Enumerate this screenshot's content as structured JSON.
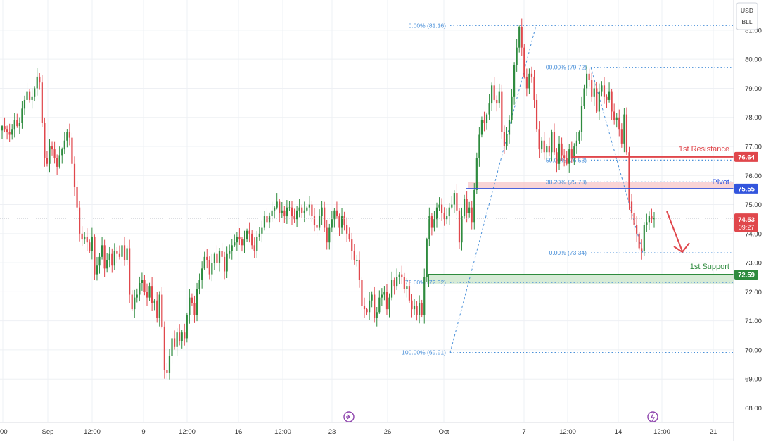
{
  "currency": {
    "line1": "USD",
    "line2": "BLL"
  },
  "colors": {
    "up": "#2e8b3e",
    "down": "#e0474c",
    "fib": "#4a90d9",
    "resistance": "#e0474c",
    "pivot": "#3355dd",
    "support": "#2e8b3e",
    "grid": "#eef0f4",
    "axis_text": "#333333"
  },
  "chart_data": {
    "type": "candlestick",
    "title": "",
    "ylim": [
      67.6,
      81.7
    ],
    "y_ticks": [
      "68.00",
      "69.00",
      "70.00",
      "71.00",
      "72.00",
      "73.00",
      "74.00",
      "75.00",
      "76.00",
      "77.00",
      "78.00",
      "79.00",
      "80.00",
      "81.00"
    ],
    "x_ticks": [
      ":00",
      "Sep",
      "12:00",
      "9",
      "12:00",
      "16",
      "12:00",
      "23",
      "26",
      "Oct",
      "7",
      "12:00",
      "14",
      "12:00",
      "21"
    ],
    "price_labels": {
      "resistance": "76.64",
      "pivot": "75.55",
      "current_price": "74.53",
      "countdown": "09:27",
      "support": "72.59"
    },
    "levels": {
      "resistance": {
        "label": "1st Resistance",
        "value": 76.64
      },
      "pivot": {
        "label": "Pivot",
        "value": 75.55,
        "zone": [
          75.55,
          75.78
        ]
      },
      "support": {
        "label": "1st Support",
        "value": 72.59,
        "zone": [
          72.28,
          72.59
        ]
      }
    },
    "fib_retracements": [
      {
        "label": "0.00% (81.16)",
        "value": 81.16
      },
      {
        "label": "78.60% (72.32)",
        "value": 72.32
      },
      {
        "label": "100.00% (69.91)",
        "value": 69.91
      },
      {
        "label": "00.00% (79.72)",
        "value": 79.72
      },
      {
        "label": "50.00% (76.53)",
        "value": 76.53
      },
      {
        "label": "38.20% (75.78)",
        "value": 75.78
      },
      {
        "label": "0.00% (73.34)",
        "value": 73.34
      }
    ],
    "closes": [
      77.7,
      77.6,
      77.5,
      77.4,
      77.6,
      77.9,
      77.7,
      77.8,
      78.3,
      78.6,
      78.9,
      78.6,
      78.7,
      79.0,
      79.4,
      79.2,
      77.8,
      76.6,
      76.4,
      77.0,
      76.9,
      76.6,
      76.3,
      76.7,
      76.9,
      77.2,
      77.5,
      77.3,
      76.4,
      75.6,
      74.9,
      74.0,
      73.8,
      73.9,
      73.7,
      73.4,
      73.9,
      72.6,
      72.9,
      73.2,
      73.6,
      72.8,
      73.1,
      73.3,
      72.9,
      73.4,
      73.3,
      73.2,
      73.6,
      73.1,
      73.5,
      71.9,
      71.4,
      71.8,
      71.9,
      72.3,
      72.4,
      72.0,
      71.8,
      72.2,
      71.6,
      71.7,
      71.1,
      71.9,
      70.8,
      69.3,
      69.2,
      69.8,
      70.4,
      70.1,
      70.6,
      70.3,
      70.6,
      70.4,
      71.2,
      71.8,
      71.6,
      71.2,
      72.1,
      72.4,
      72.8,
      73.2,
      73.1,
      72.6,
      73.0,
      73.3,
      73.0,
      73.4,
      73.2,
      72.7,
      73.3,
      73.4,
      73.6,
      73.7,
      73.9,
      73.8,
      73.6,
      73.8,
      74.1,
      74.0,
      73.6,
      73.4,
      73.9,
      74.0,
      74.2,
      74.6,
      74.4,
      74.6,
      74.8,
      74.9,
      75.1,
      74.7,
      74.8,
      74.6,
      74.9,
      74.9,
      74.6,
      74.5,
      74.8,
      74.9,
      74.7,
      74.8,
      74.9,
      75.0,
      74.6,
      74.3,
      74.2,
      74.6,
      74.9,
      74.2,
      73.7,
      74.2,
      74.5,
      74.8,
      74.6,
      74.2,
      74.6,
      74.3,
      74.0,
      73.8,
      73.4,
      73.1,
      73.1,
      72.4,
      71.5,
      71.4,
      71.3,
      71.7,
      71.9,
      71.1,
      71.3,
      71.8,
      71.9,
      72.0,
      71.4,
      71.8,
      72.4,
      72.2,
      72.5,
      72.6,
      72.5,
      72.1,
      72.2,
      71.7,
      71.4,
      71.5,
      71.2,
      71.6,
      71.2,
      72.5,
      73.8,
      74.6,
      74.2,
      74.5,
      74.9,
      75.0,
      74.7,
      74.5,
      74.6,
      74.9,
      75.0,
      75.4,
      74.8,
      73.7,
      74.6,
      75.2,
      74.7,
      74.9,
      74.4,
      75.5,
      76.6,
      77.4,
      77.9,
      77.8,
      78.1,
      78.5,
      79.1,
      78.6,
      78.5,
      78.9,
      77.5,
      77.0,
      77.4,
      77.9,
      78.7,
      79.8,
      80.4,
      81.1,
      80.4,
      79.4,
      79.0,
      79.5,
      79.4,
      78.6,
      77.6,
      76.9,
      77.2,
      76.8,
      77.0,
      76.8,
      77.5,
      76.8,
      76.4,
      77.1,
      76.7,
      76.6,
      76.4,
      76.9,
      76.6,
      77.0,
      77.2,
      77.5,
      78.4,
      79.0,
      79.5,
      79.3,
      78.7,
      79.0,
      78.2,
      78.9,
      79.1,
      78.7,
      78.6,
      78.9,
      78.2,
      77.9,
      78.0,
      77.6,
      77.1,
      78.1,
      76.8,
      75.1,
      74.7,
      74.3,
      74.0,
      73.5,
      73.4,
      74.3,
      74.4,
      74.6,
      74.5,
      74.53
    ]
  }
}
